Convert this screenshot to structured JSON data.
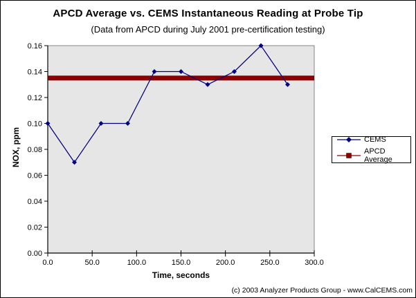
{
  "chart_data": {
    "type": "line",
    "title": "APCD Average vs. CEMS Instantaneous Reading at Probe Tip",
    "subtitle": "(Data from APCD during July 2001 pre-certification testing)",
    "xlabel": "Time, seconds",
    "ylabel": "NOX, ppm",
    "xlim": [
      0,
      300
    ],
    "ylim": [
      0,
      0.16
    ],
    "x_ticks": [
      0,
      50,
      100,
      150,
      200,
      250,
      300
    ],
    "x_tick_labels": [
      "0.0",
      "50.0",
      "100.0",
      "150.0",
      "200.0",
      "250.0",
      "300.0"
    ],
    "y_ticks": [
      0,
      0.02,
      0.04,
      0.06,
      0.08,
      0.1,
      0.12,
      0.14,
      0.16
    ],
    "y_tick_labels": [
      "0.00",
      "0.02",
      "0.04",
      "0.06",
      "0.08",
      "0.10",
      "0.12",
      "0.14",
      "0.16"
    ],
    "grid": false,
    "legend_position": "right",
    "plot_bg": "#E6E6E6",
    "plot_border": "#848484",
    "axis_color": "#000000",
    "series": [
      {
        "name": "CEMS",
        "type": "line+markers",
        "marker": "diamond",
        "color": "#000080",
        "x": [
          0,
          30,
          60,
          90,
          120,
          150,
          180,
          210,
          240,
          270
        ],
        "y": [
          0.1,
          0.07,
          0.1,
          0.1,
          0.14,
          0.14,
          0.13,
          0.14,
          0.16,
          0.13
        ]
      },
      {
        "name": "APCD Average",
        "type": "horizontal-line",
        "marker": "square",
        "color": "#8B0000",
        "value": 0.135,
        "x_range": [
          0,
          300
        ],
        "line_width": 7
      }
    ]
  },
  "footer": {
    "copyright": "(c) 2003 Analyzer Products Group - www.CalCEMS.com"
  }
}
